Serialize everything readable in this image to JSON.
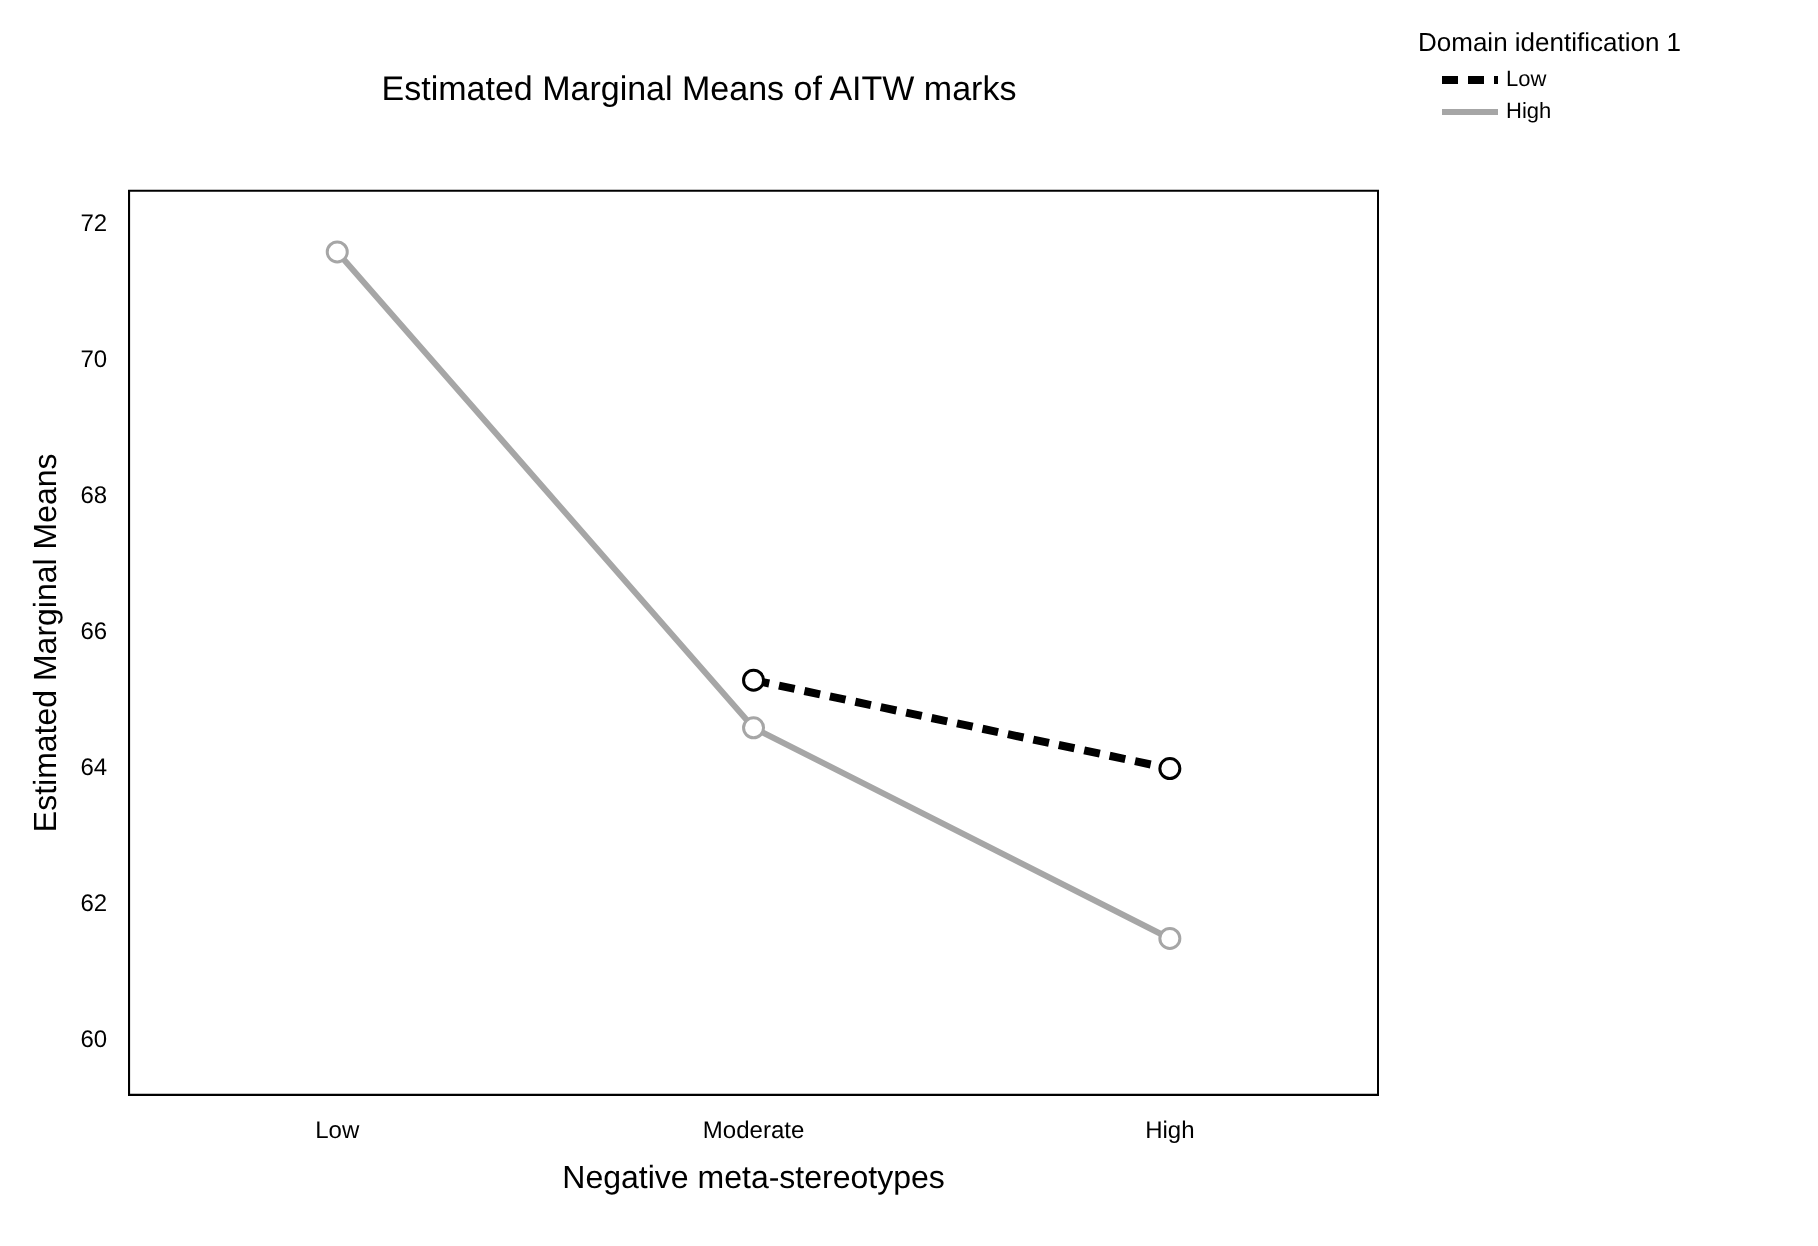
{
  "chart_data": {
    "type": "line",
    "title": "Estimated Marginal Means of AITW marks",
    "xlabel": "Negative meta-stereotypes",
    "ylabel": "Estimated Marginal Means",
    "legend_title": "Domain identification 1",
    "legend": "top right",
    "marker": "circle",
    "grid": false,
    "categories": [
      "Low",
      "Moderate",
      "High"
    ],
    "ylim": [
      59.2,
      72.5
    ],
    "yticks": [
      60,
      62,
      64,
      66,
      68,
      70,
      72
    ],
    "series": [
      {
        "name": "Low",
        "color": "#000000",
        "line_style": "dashed",
        "values": [
          null,
          65.3,
          64.0
        ]
      },
      {
        "name": "High",
        "color": "#a6a6a6",
        "line_style": "solid",
        "values": [
          71.6,
          64.6,
          61.5
        ]
      }
    ]
  }
}
